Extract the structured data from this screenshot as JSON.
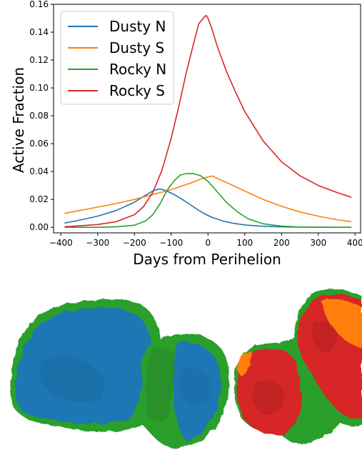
{
  "chart_data": {
    "type": "line",
    "xlabel": "Days from Perihelion",
    "ylabel": "Active Fraction",
    "xlim": [
      -420,
      415
    ],
    "ylim": [
      -0.004,
      0.16
    ],
    "xticks": [
      -400,
      -300,
      -200,
      -100,
      0,
      100,
      200,
      300,
      400
    ],
    "yticks": [
      0.0,
      0.02,
      0.04,
      0.06,
      0.08,
      0.1,
      0.12,
      0.14,
      0.16
    ],
    "ytick_labels": [
      "0.00",
      "0.02",
      "0.04",
      "0.06",
      "0.08",
      "0.10",
      "0.12",
      "0.14",
      "0.16"
    ],
    "grid": false,
    "legend_position": "top-left",
    "series": [
      {
        "name": "Dusty N",
        "color": "#1f77b4",
        "x": [
          -390,
          -350,
          -300,
          -250,
          -200,
          -170,
          -150,
          -135,
          -125,
          -110,
          -90,
          -70,
          -50,
          -30,
          -10,
          10,
          40,
          70,
          100,
          150,
          200,
          250,
          300,
          350,
          390
        ],
        "y": [
          0.003,
          0.005,
          0.008,
          0.012,
          0.018,
          0.023,
          0.026,
          0.0275,
          0.0272,
          0.0258,
          0.0232,
          0.02,
          0.0165,
          0.013,
          0.0098,
          0.0072,
          0.0045,
          0.0028,
          0.0017,
          0.0007,
          0.0003,
          0.0001,
          0.0001,
          0.0,
          0.0
        ]
      },
      {
        "name": "Dusty S",
        "color": "#ff7f0e",
        "x": [
          -390,
          -350,
          -300,
          -250,
          -200,
          -150,
          -100,
          -50,
          -20,
          0,
          12,
          30,
          60,
          100,
          150,
          200,
          250,
          300,
          350,
          390
        ],
        "y": [
          0.01,
          0.012,
          0.0145,
          0.017,
          0.02,
          0.0235,
          0.027,
          0.0315,
          0.0345,
          0.0362,
          0.0368,
          0.0345,
          0.031,
          0.026,
          0.02,
          0.015,
          0.011,
          0.008,
          0.0055,
          0.004
        ]
      },
      {
        "name": "Rocky N",
        "color": "#2ca02c",
        "x": [
          -390,
          -300,
          -250,
          -200,
          -170,
          -150,
          -130,
          -110,
          -90,
          -75,
          -60,
          -40,
          -20,
          0,
          20,
          50,
          80,
          110,
          150,
          200,
          250,
          300,
          350,
          390
        ],
        "y": [
          0.0,
          0.0,
          0.0003,
          0.0015,
          0.0045,
          0.009,
          0.017,
          0.027,
          0.034,
          0.0375,
          0.0385,
          0.0385,
          0.037,
          0.033,
          0.027,
          0.018,
          0.011,
          0.006,
          0.0025,
          0.0008,
          0.0002,
          0.0,
          0.0,
          0.0
        ]
      },
      {
        "name": "Rocky S",
        "color": "#d62728",
        "x": [
          -390,
          -300,
          -250,
          -200,
          -175,
          -150,
          -125,
          -100,
          -80,
          -60,
          -40,
          -25,
          -10,
          -5,
          0,
          10,
          25,
          50,
          75,
          100,
          150,
          200,
          250,
          300,
          350,
          390
        ],
        "y": [
          0.0003,
          0.002,
          0.004,
          0.009,
          0.015,
          0.025,
          0.041,
          0.064,
          0.086,
          0.11,
          0.131,
          0.146,
          0.151,
          0.152,
          0.15,
          0.143,
          0.13,
          0.112,
          0.097,
          0.083,
          0.062,
          0.047,
          0.037,
          0.03,
          0.025,
          0.0215
        ]
      }
    ]
  }
}
